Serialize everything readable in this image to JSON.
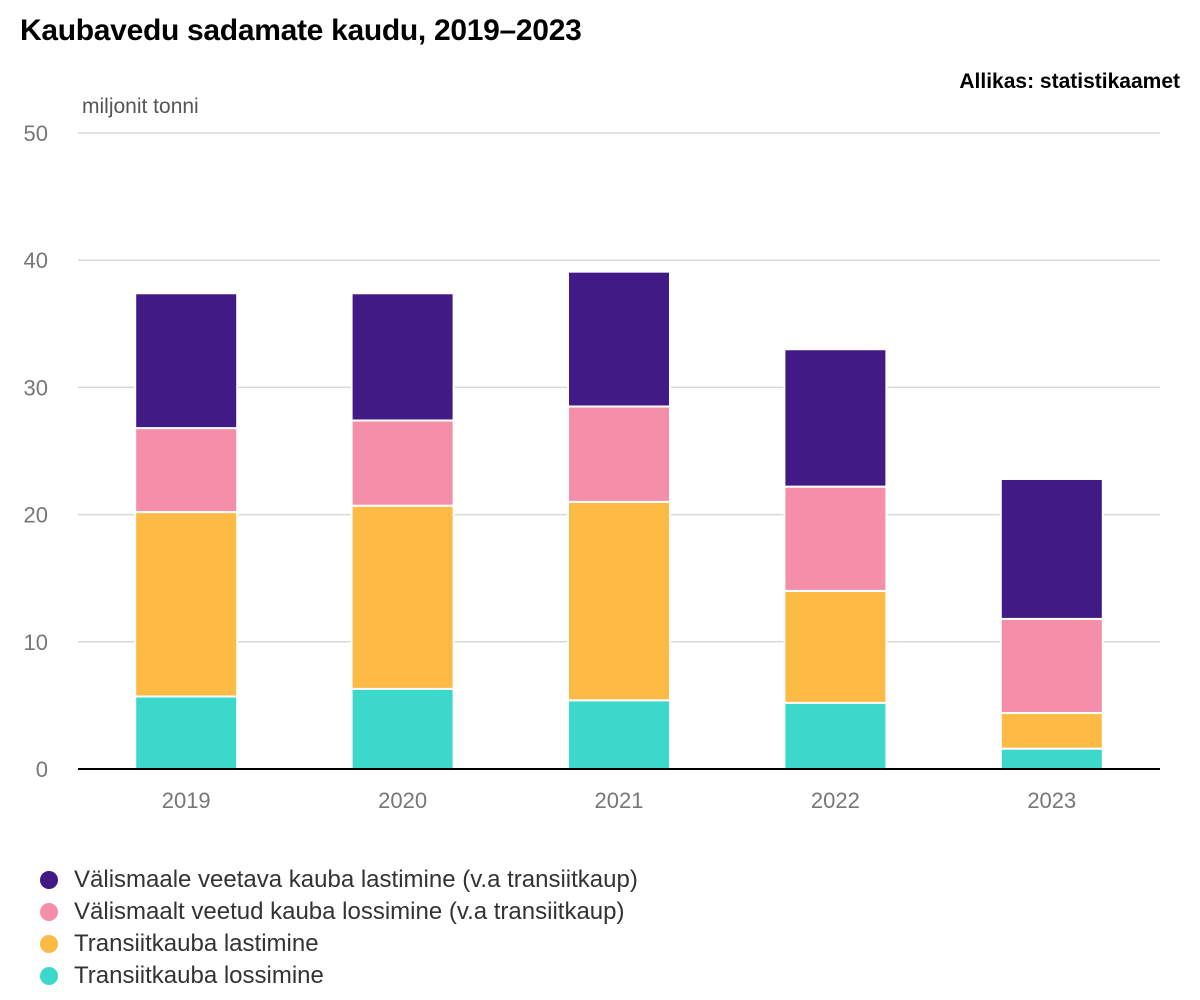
{
  "title": "Kaubavedu sadamate kaudu, 2019–2023",
  "source": "Allikas: statistikaamet",
  "chart_data": {
    "type": "bar",
    "stacked": true,
    "title": "Kaubavedu sadamate kaudu, 2019–2023",
    "ylabel": "miljonit tonni",
    "xlabel": "",
    "ylim": [
      0,
      50
    ],
    "yticks": [
      0,
      10,
      20,
      30,
      40,
      50
    ],
    "grid": true,
    "legend_position": "bottom",
    "categories": [
      "2019",
      "2020",
      "2021",
      "2022",
      "2023"
    ],
    "series": [
      {
        "name": "Transiitkauba lossimine",
        "color": "#3dd8cc",
        "values": [
          5.7,
          6.3,
          5.4,
          5.2,
          1.6
        ]
      },
      {
        "name": "Transiitkauba lastimine",
        "color": "#fdbb45",
        "values": [
          14.5,
          14.4,
          15.6,
          8.8,
          2.8
        ]
      },
      {
        "name": "Välismaalt veetud kauba lossimine (v.a transiitkaup)",
        "color": "#f58ea8",
        "values": [
          6.6,
          6.7,
          7.5,
          8.2,
          7.4
        ]
      },
      {
        "name": "Välismaale veetava kauba lastimine (v.a transiitkaup)",
        "color": "#411a85",
        "values": [
          10.6,
          10.0,
          10.6,
          10.8,
          11.0
        ]
      }
    ]
  },
  "legend": [
    {
      "label": "Välismaale veetava kauba lastimine (v.a transiitkaup)",
      "color": "#411a85"
    },
    {
      "label": "Välismaalt veetud kauba lossimine (v.a transiitkaup)",
      "color": "#f58ea8"
    },
    {
      "label": "Transiitkauba lastimine",
      "color": "#fdbb45"
    },
    {
      "label": "Transiitkauba lossimine",
      "color": "#3dd8cc"
    }
  ]
}
